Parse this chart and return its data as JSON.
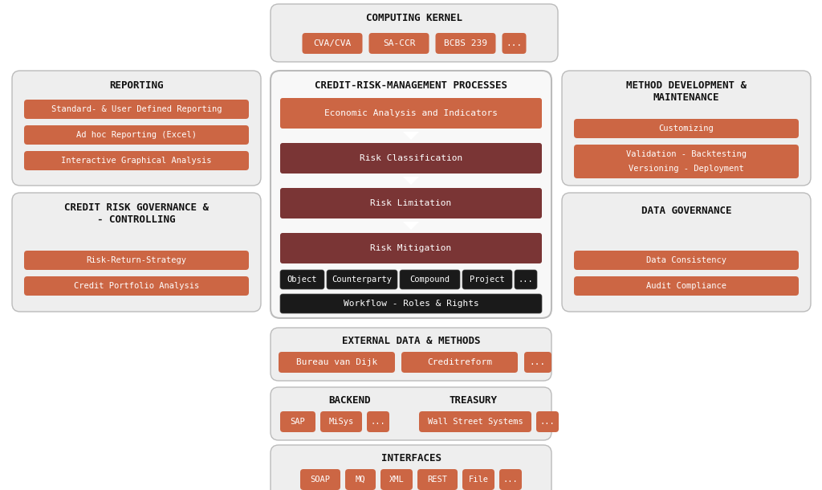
{
  "white": "#ffffff",
  "orange": "#cc6644",
  "dark_red": "#7a3535",
  "black": "#1a1a1a",
  "text_dark": "#111111",
  "panel_bg": "#eeeeee",
  "panel_border": "#bbbbbb",
  "computing_kernel": {
    "title": "COMPUTING KERNEL",
    "buttons": [
      "CVA/CVA",
      "SA-CCR",
      "BCBS 239",
      "..."
    ]
  },
  "credit_risk": {
    "title": "CREDIT-RISK-MANAGEMENT PROCESSES",
    "rows": [
      "Economic Analysis and Indicators",
      "Risk Classification",
      "Risk Limitation",
      "Risk Mitigation"
    ],
    "bottom_buttons": [
      "Object",
      "Counterparty",
      "Compound",
      "Project",
      "..."
    ],
    "workflow": "Workflow - Roles & Rights"
  },
  "reporting": {
    "title": "REPORTING",
    "buttons": [
      "Standard- & User Defined Reporting",
      "Ad hoc Reporting (Excel)",
      "Interactive Graphical Analysis"
    ]
  },
  "governance": {
    "title": "CREDIT RISK GOVERNANCE &\n- CONTROLLING",
    "buttons": [
      "Risk-Return-Strategy",
      "Credit Portfolio Analysis"
    ]
  },
  "method_dev": {
    "title": "METHOD DEVELOPMENT &\nMAINTENANCE",
    "buttons": [
      "Customizing",
      "Validation - Backtesting",
      "Versioning - Deployment"
    ]
  },
  "data_gov": {
    "title": "DATA GOVERNANCE",
    "buttons": [
      "Data Consistency",
      "Audit Compliance"
    ]
  },
  "external_data": {
    "title": "EXTERNAL DATA & METHODS",
    "buttons": [
      "Bureau van Dijk",
      "Creditreform",
      "..."
    ]
  },
  "backend": {
    "title_left": "BACKEND",
    "title_right": "TREASURY",
    "buttons_left": [
      "SAP",
      "MiSys",
      "..."
    ],
    "buttons_right": [
      "Wall Street Systems",
      "..."
    ]
  },
  "interfaces": {
    "title": "INTERFACES",
    "buttons": [
      "SOAP",
      "MQ",
      "XML",
      "REST",
      "File",
      "..."
    ]
  }
}
